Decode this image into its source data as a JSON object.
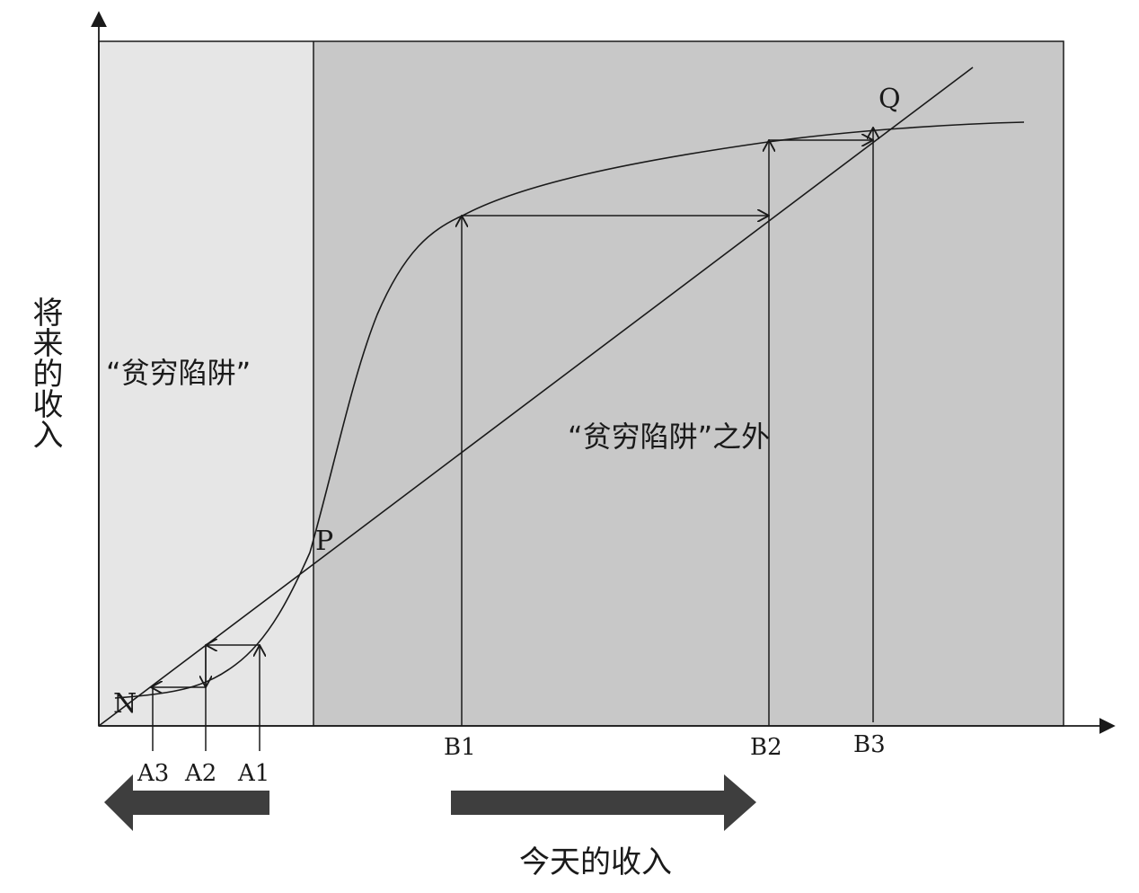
{
  "labels": {
    "y_axis": "将来的收入",
    "x_axis": "今天的收入",
    "poverty_trap": "“贫穷陷阱”",
    "outside_trap": "“贫穷陷阱”之外",
    "point_n": "N",
    "point_p": "P",
    "point_q": "Q",
    "tick_a3": "A3",
    "tick_a2": "A2",
    "tick_a1": "A1",
    "tick_b1": "B1",
    "tick_b2": "B2",
    "tick_b3": "B3"
  },
  "colors": {
    "trap_region": "#e6e6e6",
    "outside_region": "#c8c8c8",
    "lines": "#1a1a1a",
    "big_arrows": "#3e3e3e"
  }
}
